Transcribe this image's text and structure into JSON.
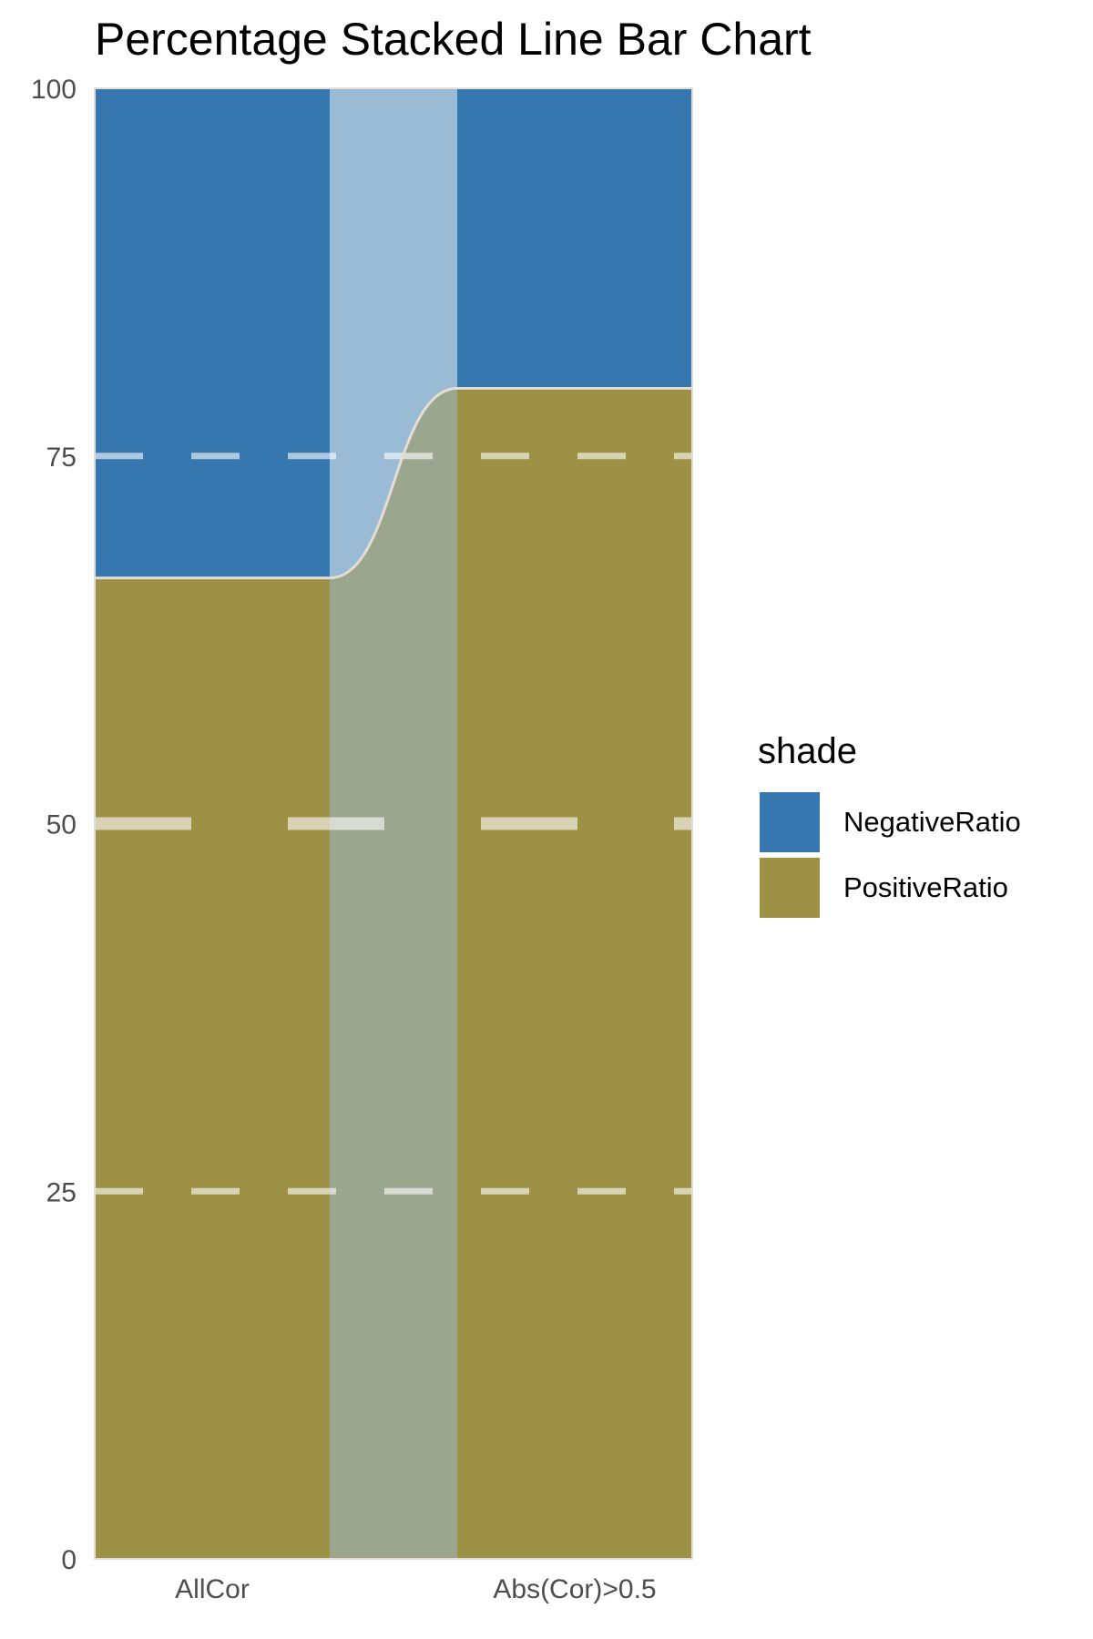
{
  "chart_data": {
    "type": "bar",
    "title": "Percentage Stacked Line Bar Chart",
    "xlabel": "",
    "ylabel": "",
    "categories": [
      "AllCor",
      "Abs(Cor)>0.5"
    ],
    "series": [
      {
        "name": "PositiveRatio",
        "values": [
          66.7,
          79.6
        ],
        "color": "#9c9145"
      },
      {
        "name": "NegativeRatio",
        "values": [
          33.3,
          20.4
        ],
        "color": "#3577ae"
      }
    ],
    "ylim": [
      0,
      100
    ],
    "yticks": [
      "0",
      "25",
      "50",
      "75",
      "100"
    ],
    "grid": true,
    "legend": {
      "title": "shade",
      "position": "right",
      "entries": [
        {
          "label": "NegativeRatio",
          "color": "#3577ae"
        },
        {
          "label": "PositiveRatio",
          "color": "#9c9145"
        }
      ]
    },
    "colors": {
      "border": "#e6dcd6",
      "gridline": "#ffffff"
    }
  }
}
